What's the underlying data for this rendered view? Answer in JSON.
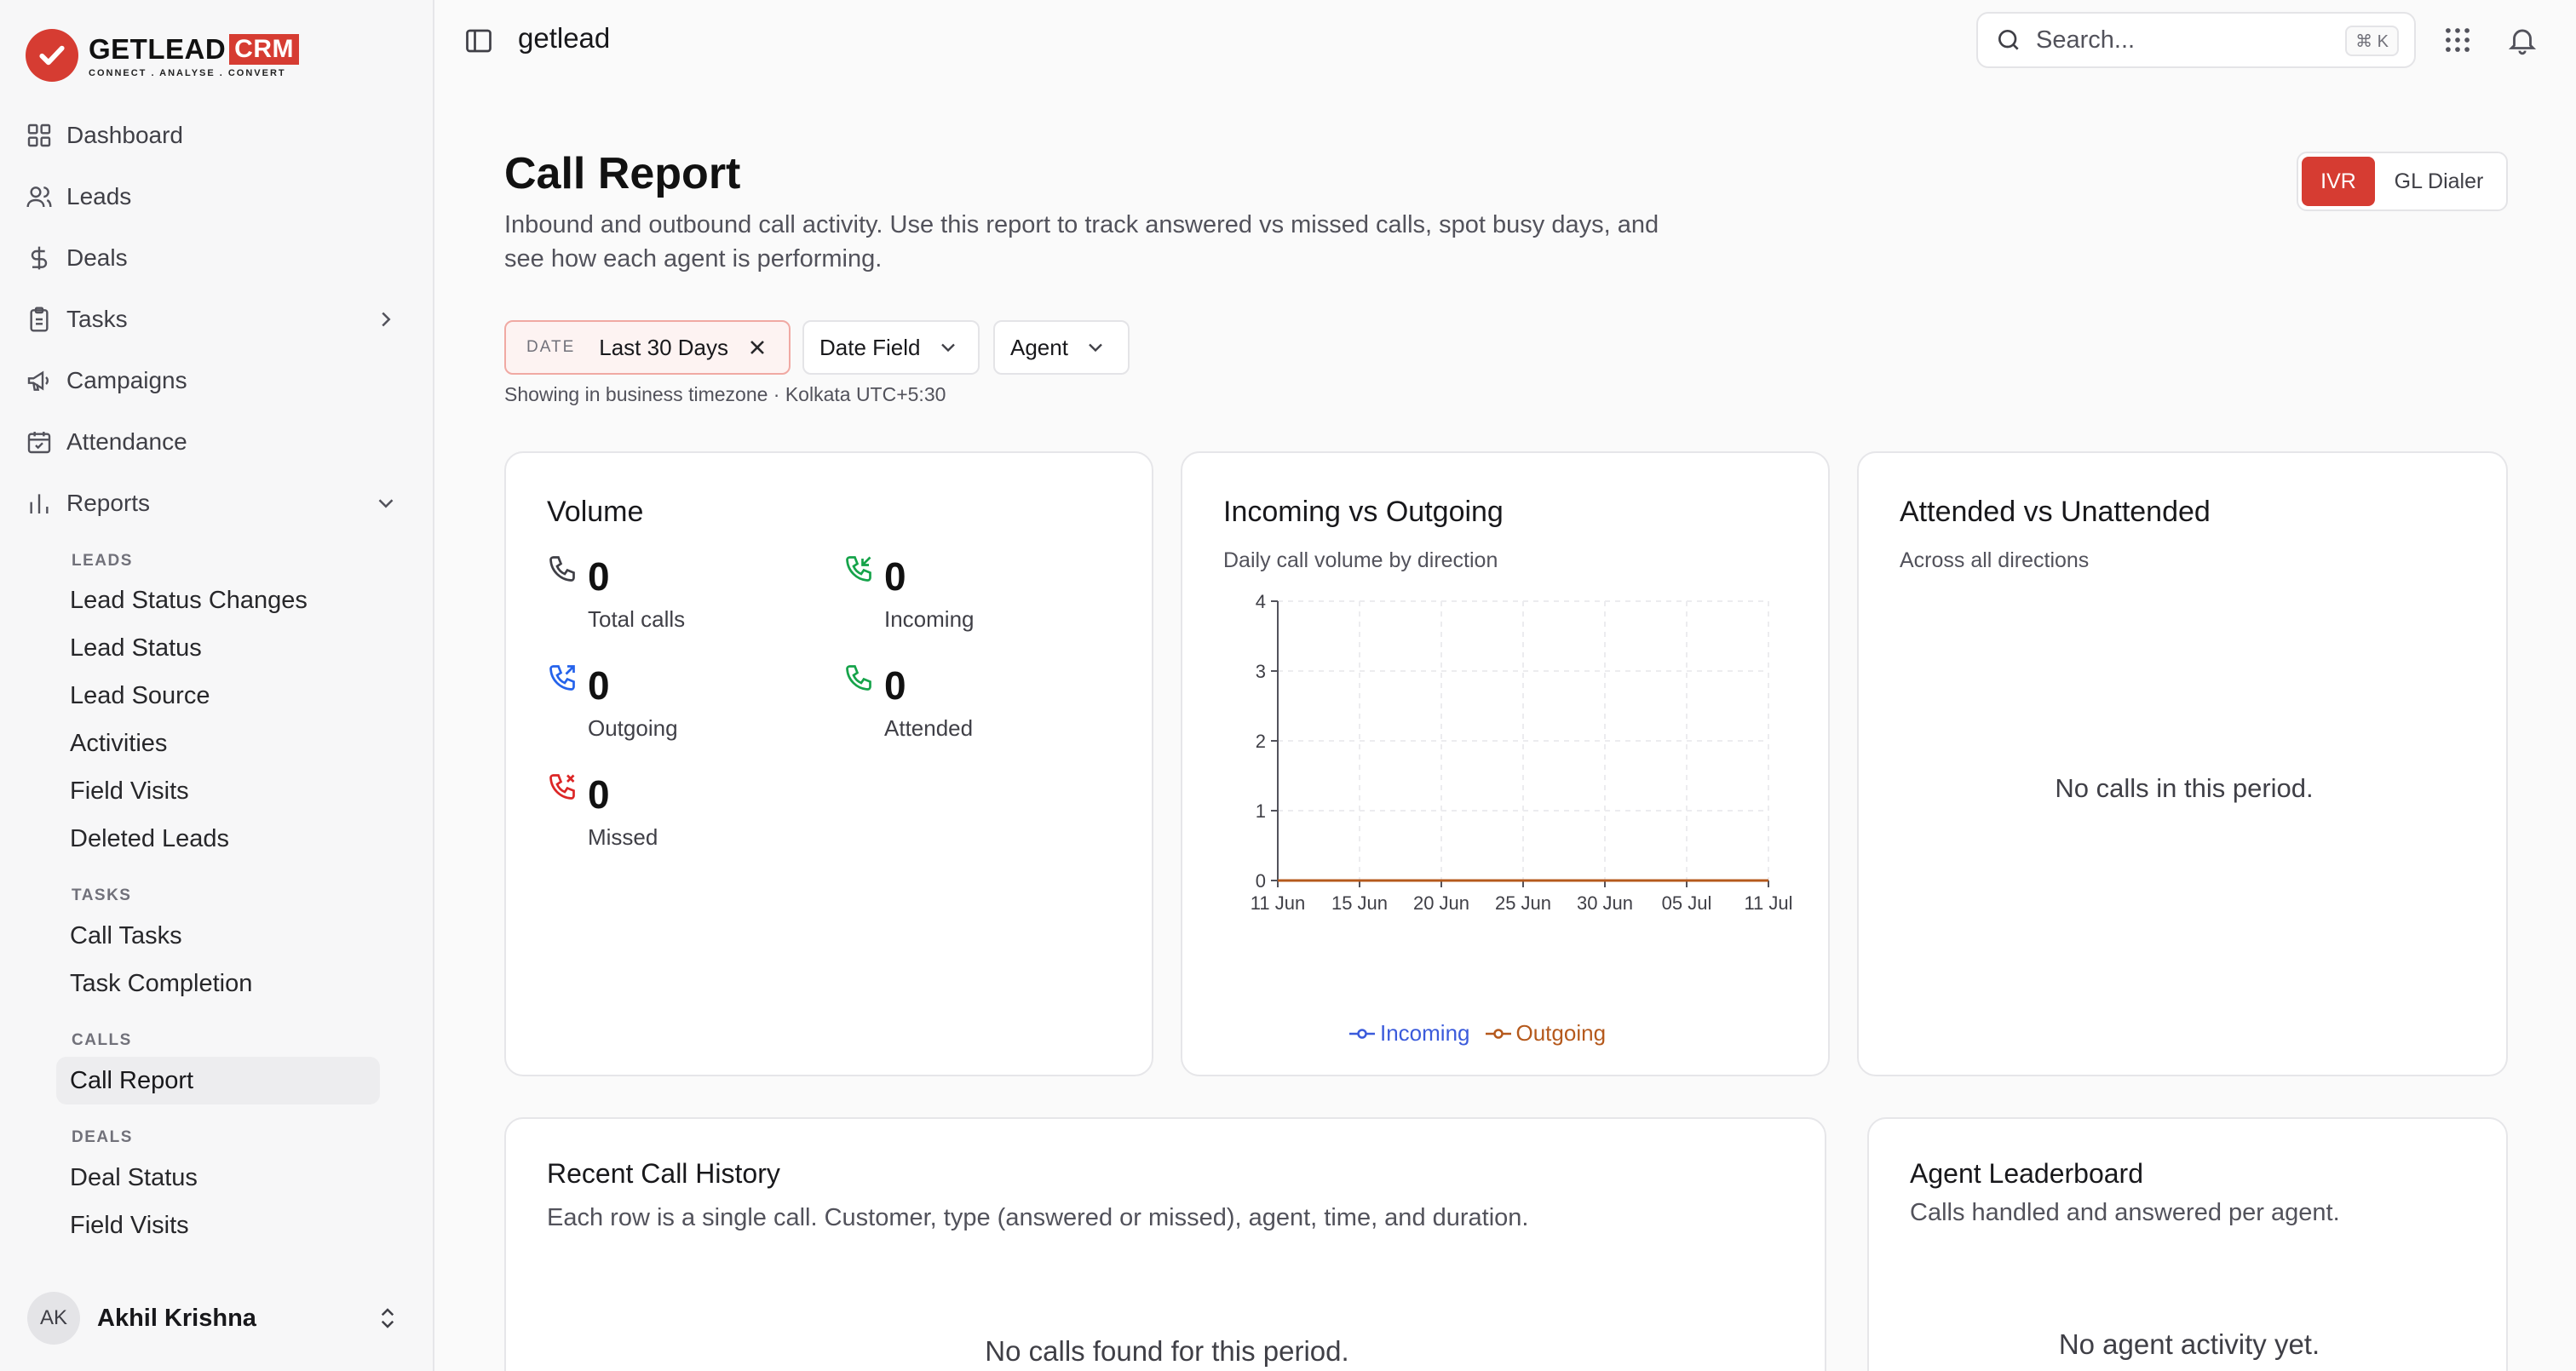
{
  "brand": {
    "name": "GETLEAD",
    "badge": "CRM",
    "tagline": "CONNECT . ANALYSE . CONVERT"
  },
  "nav": [
    {
      "label": "Dashboard",
      "icon": "grid-icon"
    },
    {
      "label": "Leads",
      "icon": "users-icon"
    },
    {
      "label": "Deals",
      "icon": "dollar-icon"
    },
    {
      "label": "Tasks",
      "icon": "clipboard-icon"
    },
    {
      "label": "Campaigns",
      "icon": "megaphone-icon"
    },
    {
      "label": "Attendance",
      "icon": "calendar-check-icon"
    },
    {
      "label": "Reports",
      "icon": "bar-chart-icon"
    }
  ],
  "reports_menu": {
    "sections": [
      {
        "heading": "LEADS",
        "items": [
          "Lead Status Changes",
          "Lead Status",
          "Lead Source",
          "Activities",
          "Field Visits",
          "Deleted Leads"
        ]
      },
      {
        "heading": "TASKS",
        "items": [
          "Call Tasks",
          "Task Completion"
        ]
      },
      {
        "heading": "CALLS",
        "items": [
          "Call Report"
        ]
      },
      {
        "heading": "DEALS",
        "items": [
          "Deal Status",
          "Field Visits"
        ]
      }
    ],
    "active": "Call Report"
  },
  "user": {
    "initials": "AK",
    "name": "Akhil Krishna"
  },
  "topbar": {
    "breadcrumb": "getlead",
    "search_placeholder": "Search...",
    "shortcut": "⌘ K"
  },
  "page": {
    "title": "Call Report",
    "description": "Inbound and outbound call activity. Use this report to track answered vs missed calls, spot busy days, and see how each agent is performing.",
    "source_toggle": {
      "options": [
        "IVR",
        "GL Dialer"
      ],
      "selected": "IVR"
    }
  },
  "filters": {
    "date_label": "DATE",
    "date_value": "Last 30 Days",
    "date_field": "Date Field",
    "agent": "Agent",
    "timezone_note": "Showing in business timezone · Kolkata UTC+5:30"
  },
  "volume": {
    "title": "Volume",
    "stats": [
      {
        "value": "0",
        "label": "Total calls",
        "icon": "phone-icon",
        "color": "#3f3f46"
      },
      {
        "value": "0",
        "label": "Incoming",
        "icon": "phone-incoming-icon",
        "color": "#16a34a"
      },
      {
        "value": "0",
        "label": "Outgoing",
        "icon": "phone-outgoing-icon",
        "color": "#2563eb"
      },
      {
        "value": "0",
        "label": "Attended",
        "icon": "phone-icon",
        "color": "#16a34a"
      },
      {
        "value": "0",
        "label": "Missed",
        "icon": "phone-missed-icon",
        "color": "#dc2626"
      }
    ]
  },
  "incoming_outgoing": {
    "title": "Incoming vs Outgoing",
    "subtitle": "Daily call volume by direction"
  },
  "chart_data": {
    "type": "line",
    "title": "Incoming vs Outgoing",
    "subtitle": "Daily call volume by direction",
    "x_ticks": [
      "11 Jun",
      "15 Jun",
      "20 Jun",
      "25 Jun",
      "30 Jun",
      "05 Jul",
      "11 Jul"
    ],
    "ylim": [
      0,
      4
    ],
    "y_ticks": [
      0,
      1,
      2,
      3,
      4
    ],
    "grid": true,
    "legend": "bottom-center",
    "series": [
      {
        "name": "Incoming",
        "color": "#3b5bdb",
        "values": [
          0,
          0,
          0,
          0,
          0,
          0,
          0
        ]
      },
      {
        "name": "Outgoing",
        "color": "#b5591c",
        "values": [
          0,
          0,
          0,
          0,
          0,
          0,
          0
        ]
      }
    ]
  },
  "attended": {
    "title": "Attended vs Unattended",
    "subtitle": "Across all directions",
    "empty": "No calls in this period."
  },
  "history": {
    "title": "Recent Call History",
    "subtitle": "Each row is a single call. Customer, type (answered or missed), agent, time, and duration.",
    "empty": "No calls found for this period."
  },
  "leaderboard": {
    "title": "Agent Leaderboard",
    "subtitle": "Calls handled and answered per agent.",
    "empty": "No agent activity yet."
  },
  "colors": {
    "accent": "#d63c32",
    "incoming": "#3b5bdb",
    "outgoing": "#b5591c"
  }
}
